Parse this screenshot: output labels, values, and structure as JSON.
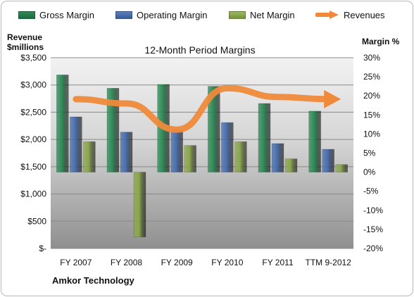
{
  "legend": [
    {
      "label": "Gross Margin",
      "kind": "swatch",
      "color": "#2e8b57"
    },
    {
      "label": "Operating Margin",
      "kind": "swatch",
      "color": "#4a6fae"
    },
    {
      "label": "Net Margin",
      "kind": "swatch",
      "color": "#8aa64e"
    },
    {
      "label": "Revenues",
      "kind": "arrow",
      "color": "#ef8a3b"
    }
  ],
  "left_axis_title": [
    "Revenue",
    "$millions"
  ],
  "right_axis_title": "Margin %",
  "company": "Amkor Technology",
  "chart_data": {
    "type": "bar",
    "title": "12-Month Period Margins",
    "categories": [
      "FY 2007",
      "FY 2008",
      "FY 2009",
      "FY 2010",
      "FY 2011",
      "TTM 9-2012"
    ],
    "series": [
      {
        "name": "Gross Margin",
        "axis": "right",
        "color": "#2e8b57",
        "values": [
          25.5,
          22.0,
          23.0,
          22.5,
          18.0,
          16.0
        ]
      },
      {
        "name": "Operating Margin",
        "axis": "right",
        "color": "#4a6fae",
        "values": [
          14.5,
          10.5,
          11.0,
          13.0,
          7.5,
          6.0
        ]
      },
      {
        "name": "Net Margin",
        "axis": "right",
        "color": "#8aa64e",
        "values": [
          8.0,
          -17.0,
          7.0,
          8.0,
          3.5,
          2.0
        ]
      },
      {
        "name": "Revenues",
        "axis": "left",
        "type": "line",
        "color": "#ef8a3b",
        "values": [
          2740,
          2660,
          2180,
          2940,
          2780,
          2740
        ]
      }
    ],
    "y_left": {
      "ylim": [
        0,
        3500
      ],
      "ticks": [
        "$-",
        "$500",
        "$1,000",
        "$1,500",
        "$2,000",
        "$2,500",
        "$3,000",
        "$3,500"
      ]
    },
    "y_right": {
      "ylim": [
        -20,
        30
      ],
      "ticks": [
        "-20%",
        "-15%",
        "-10%",
        "-5%",
        "0%",
        "5%",
        "10%",
        "15%",
        "20%",
        "25%",
        "30%"
      ]
    },
    "grid": true,
    "legend_position": "top"
  }
}
